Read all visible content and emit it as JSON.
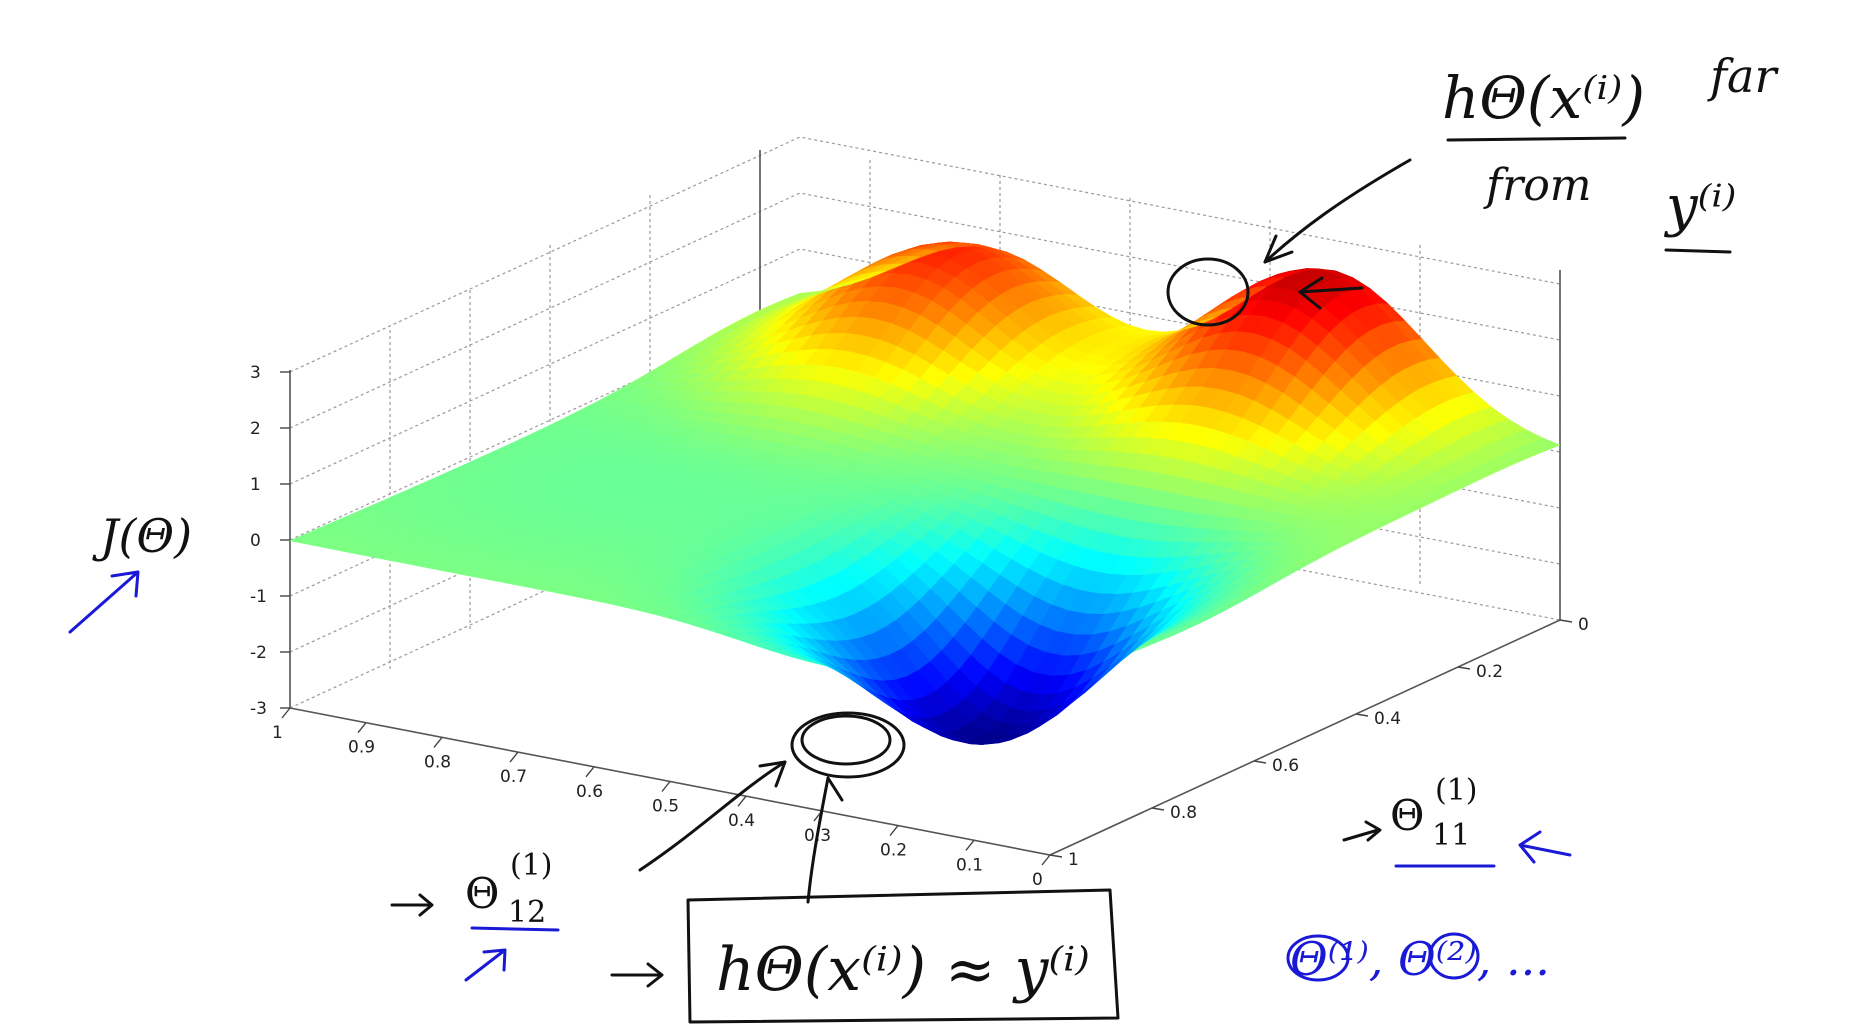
{
  "chart_data": {
    "type": "surface",
    "title": "",
    "zlabel": "J(Θ)",
    "xlabel_main": "Θ",
    "xlabel_sub": "11",
    "xlabel_sup": "(1)",
    "ylabel_main": "Θ",
    "ylabel_sub": "12",
    "ylabel_sup": "(1)",
    "zlim": [
      -3,
      3
    ],
    "xlim": [
      0,
      1
    ],
    "ylim": [
      0,
      1
    ],
    "z_ticks": [
      "3",
      "2",
      "1",
      "0",
      "-1",
      "-2",
      "-3"
    ],
    "x_ticks": [
      "0",
      "0.2",
      "0.4",
      "0.6",
      "0.8",
      "1"
    ],
    "y_ticks": [
      "1",
      "0.9",
      "0.8",
      "0.7",
      "0.6",
      "0.5",
      "0.4",
      "0.3",
      "0.2",
      "0.1",
      "0"
    ],
    "grid": true,
    "colormap": "jet",
    "surface_peaks": [
      {
        "x": 0.05,
        "y": 0.3,
        "z": 2.6
      },
      {
        "x": 0.1,
        "y": 0.75,
        "z": 2.1
      },
      {
        "x": 0.7,
        "y": 0.28,
        "z": -3.0
      }
    ]
  },
  "annotations": {
    "top_right": {
      "numerator": "hΘ(x⁽ⁱ⁾)",
      "word_far": "far",
      "word_from": "from",
      "y_term": "y⁽ⁱ⁾"
    },
    "bottom_box": "hΘ(x⁽ⁱ⁾) ≈ y⁽ⁱ⁾",
    "blue_list": "Θ⁽¹⁾, Θ⁽²⁾, ...",
    "ink_black": "#111111",
    "ink_blue": "#1a1ad6"
  }
}
